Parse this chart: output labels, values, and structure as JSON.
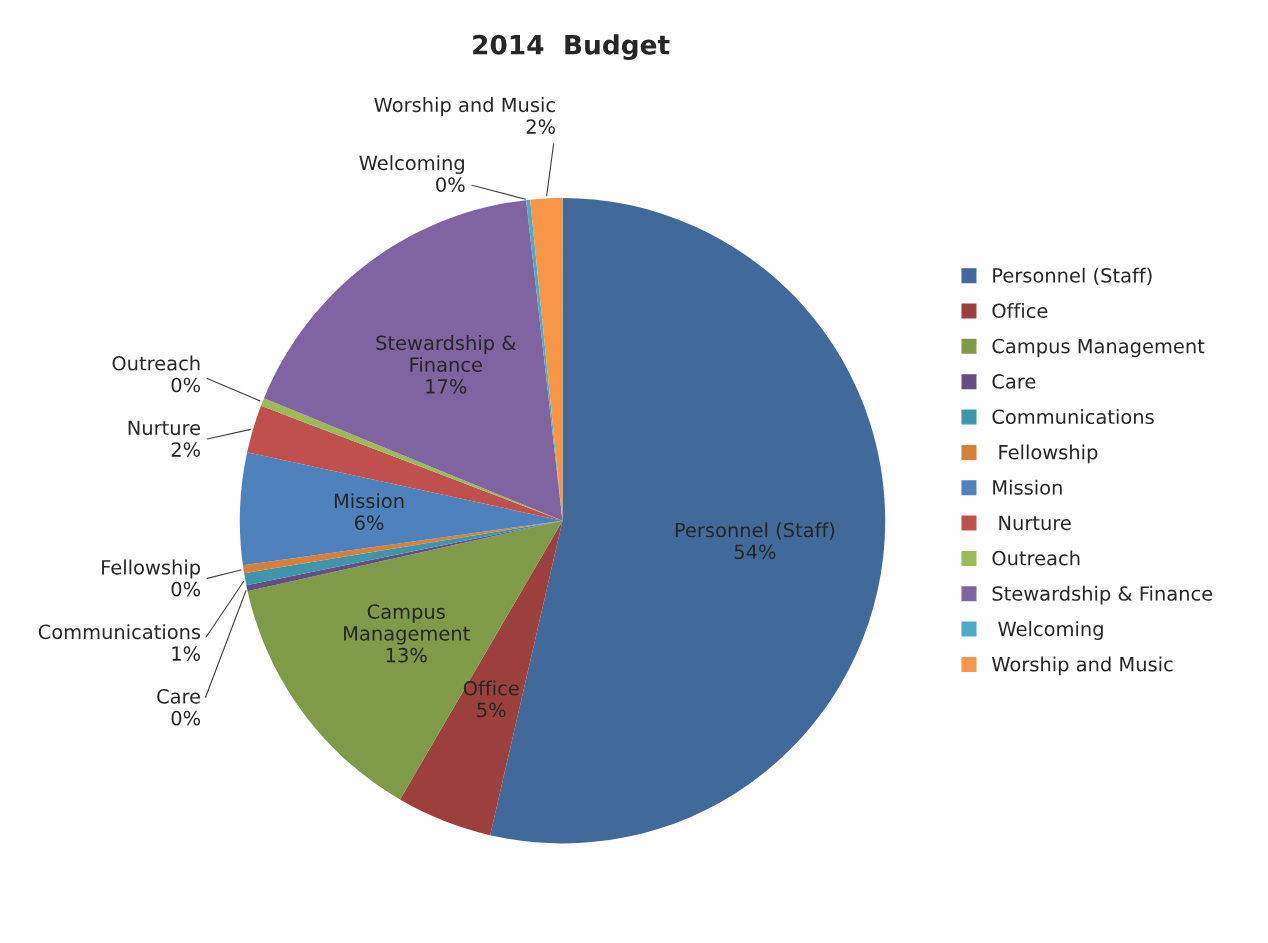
{
  "chart_data": {
    "type": "pie",
    "title": "2014  Budget",
    "categories": [
      "Personnel (Staff)",
      "Office",
      "Campus Management",
      "Care",
      "Communications",
      " Fellowship",
      "Mission",
      " Nurture",
      "Outreach",
      "Stewardship & Finance",
      " Welcoming",
      "Worship and Music"
    ],
    "values": [
      53.6,
      4.8,
      13.1,
      0.3,
      0.6,
      0.4,
      5.6,
      2.4,
      0.4,
      17.0,
      0.2,
      1.6
    ],
    "value_labels": [
      "54%",
      "5%",
      "13%",
      "0%",
      "1%",
      "0%",
      "6%",
      "2%",
      "0%",
      "17%",
      "0%",
      "2%"
    ],
    "colors": [
      "#41699a",
      "#9c403d",
      "#7f9a48",
      "#664e82",
      "#3f95ab",
      "#d7803a",
      "#4f81bd",
      "#c0504d",
      "#9bbb59",
      "#8064a2",
      "#4bacc6",
      "#f79646"
    ],
    "legend": "right"
  }
}
